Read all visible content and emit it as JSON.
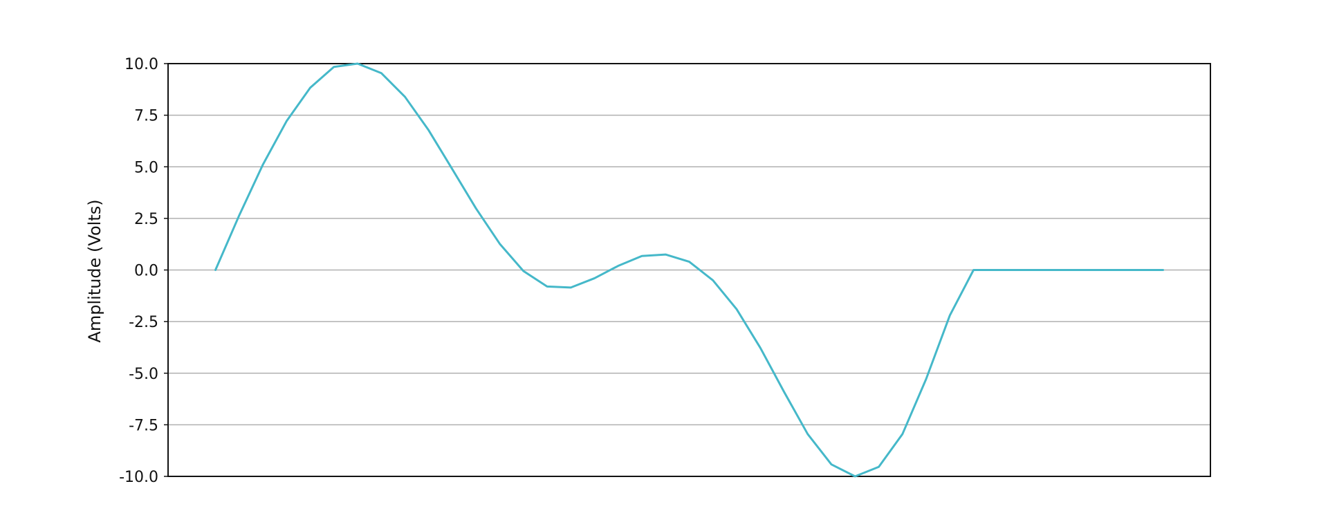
{
  "chart_data": {
    "type": "line",
    "title": "",
    "xlabel": "",
    "ylabel": "Amplitude (Volts)",
    "ylim": [
      -10,
      10
    ],
    "xlim": [
      -0.05,
      1.05
    ],
    "y_ticks": [
      10.0,
      7.5,
      5.0,
      2.5,
      0.0,
      -2.5,
      -5.0,
      -7.5,
      -10.0
    ],
    "y_tick_labels": [
      "10.0",
      "7.5",
      "5.0",
      "2.5",
      "0.0",
      "-2.5",
      "-5.0",
      "-7.5",
      "-10.0"
    ],
    "grid": "horizontal",
    "colors": {
      "series": "#45B8C9",
      "grid": "#B0B0B0",
      "axis": "#111111"
    },
    "series": [
      {
        "x": [
          0.0,
          0.025,
          0.05,
          0.075,
          0.1,
          0.125,
          0.15,
          0.175,
          0.2,
          0.225,
          0.25,
          0.275,
          0.3,
          0.325,
          0.35,
          0.375,
          0.4,
          0.425,
          0.45,
          0.475,
          0.5,
          0.525,
          0.55,
          0.575,
          0.6,
          0.625,
          0.65,
          0.675,
          0.7,
          0.725,
          0.75,
          0.775,
          0.8,
          0.825,
          0.85,
          0.875,
          0.9,
          0.925,
          0.95,
          0.975,
          1.0
        ],
        "values": [
          0.0,
          2.64,
          5.1,
          7.21,
          8.83,
          9.84,
          10.0,
          9.54,
          8.39,
          6.77,
          4.88,
          2.98,
          1.27,
          -0.05,
          -0.8,
          -0.85,
          -0.4,
          0.2,
          0.68,
          0.75,
          0.4,
          -0.5,
          -1.9,
          -3.77,
          -5.9,
          -7.95,
          -9.42,
          -10.0,
          -9.54,
          -7.95,
          -5.28,
          -2.2,
          0.0,
          0.0,
          0.0,
          0.0,
          0.0,
          0.0,
          0.0,
          0.0,
          0.0
        ]
      }
    ]
  }
}
